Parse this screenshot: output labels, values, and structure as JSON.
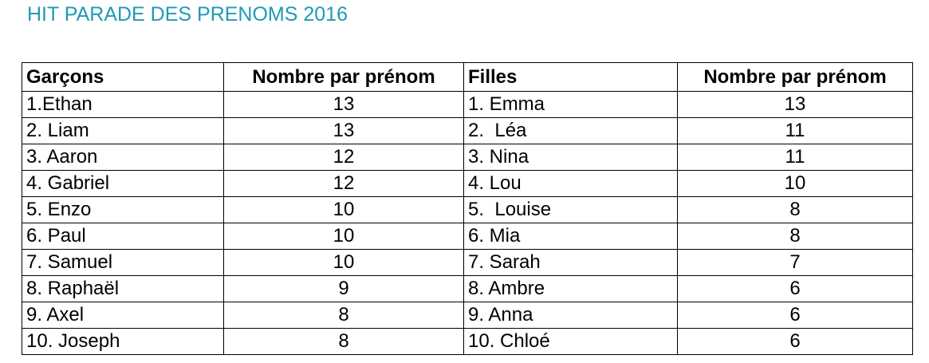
{
  "title": "HIT PARADE DES PRENOMS 2016",
  "colors": {
    "title": "#1f9ab5",
    "border": "#000000",
    "text": "#000000"
  },
  "table": {
    "headers": {
      "boys": "Garçons",
      "boys_count": "Nombre par prénom",
      "girls": "Filles",
      "girls_count": "Nombre par prénom"
    },
    "rows": [
      {
        "boy": "1.Ethan",
        "boy_count": "13",
        "girl": "1. Emma",
        "girl_count": "13"
      },
      {
        "boy": "2. Liam",
        "boy_count": "13",
        "girl": "2.  Léa",
        "girl_count": "11"
      },
      {
        "boy": "3. Aaron",
        "boy_count": "12",
        "girl": "3. Nina",
        "girl_count": "11"
      },
      {
        "boy": "4. Gabriel",
        "boy_count": "12",
        "girl": "4. Lou",
        "girl_count": "10"
      },
      {
        "boy": "5. Enzo",
        "boy_count": "10",
        "girl": "5.  Louise",
        "girl_count": "8"
      },
      {
        "boy": "6. Paul",
        "boy_count": "10",
        "girl": "6. Mia",
        "girl_count": "8"
      },
      {
        "boy": "7. Samuel",
        "boy_count": "10",
        "girl": "7. Sarah",
        "girl_count": "7"
      },
      {
        "boy": "8. Raphaël",
        "boy_count": "9",
        "girl": "8. Ambre",
        "girl_count": "6"
      },
      {
        "boy": "9. Axel",
        "boy_count": "8",
        "girl": "9. Anna",
        "girl_count": "6"
      },
      {
        "boy": "10. Joseph",
        "boy_count": "8",
        "girl": "10. Chloé",
        "girl_count": "6"
      }
    ]
  }
}
